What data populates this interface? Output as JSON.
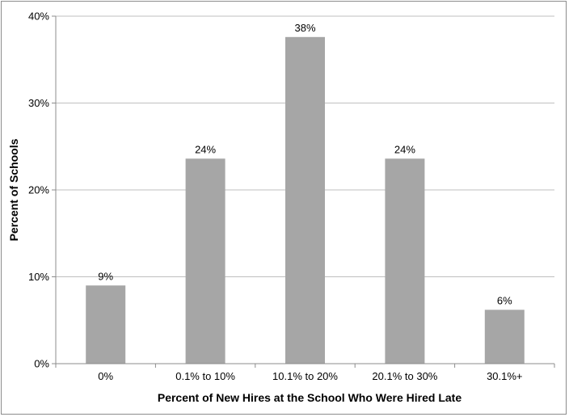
{
  "chart_data": {
    "type": "bar",
    "title": "",
    "xlabel": "Percent of New Hires at the School Who Were Hired Late",
    "ylabel": "Percent of Schools",
    "categories": [
      "0%",
      "0.1% to 10%",
      "10.1% to 20%",
      "20.1% to 30%",
      "30.1%+"
    ],
    "series": [
      {
        "values": [
          9,
          23.6,
          37.6,
          23.6,
          6.2
        ],
        "data_labels": [
          "9%",
          "24%",
          "38%",
          "24%",
          "6%"
        ]
      }
    ],
    "ylim": [
      0,
      40
    ],
    "yticks": [
      0,
      10,
      20,
      30,
      40
    ],
    "ytick_labels": [
      "0%",
      "10%",
      "20%",
      "30%",
      "40%"
    ],
    "grid": true,
    "legend": "none",
    "colors": {
      "bar": "#a6a6a6",
      "grid": "#bfbfbf",
      "axis": "#8c8c8c"
    }
  }
}
